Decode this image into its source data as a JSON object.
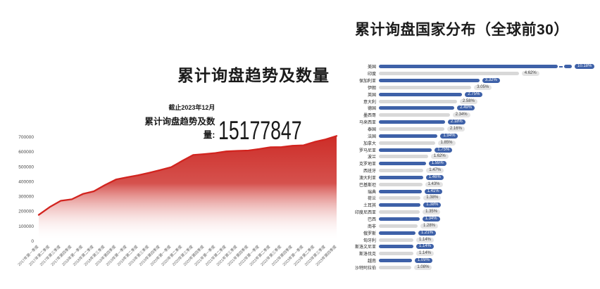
{
  "chart_data": [
    {
      "type": "area",
      "title": "累计询盘趋势及数量",
      "as_of": "截止2023年12月",
      "stat_label": "累计询盘趋势及数量:",
      "stat_value": "15177847",
      "x": [
        "2017年第一季度",
        "2017年第二季度",
        "2017年第三季度",
        "2017年第四季度",
        "2018年第一季度",
        "2018年第二季度",
        "2018年第三季度",
        "2018年第四季度",
        "2019年第一季度",
        "2019年第二季度",
        "2019年第三季度",
        "2019年第四季度",
        "2020年第一季度",
        "2020年第二季度",
        "2020年第三季度",
        "2020年第四季度",
        "2021年第一季度",
        "2021年第二季度",
        "2021年第三季度",
        "2021年第四季度",
        "2022年第一季度",
        "2022年第二季度",
        "2022年第三季度",
        "2022年第四季度",
        "2023年第一季度",
        "2023年第二季度",
        "2023年第三季度",
        "2023年第四季度"
      ],
      "values": [
        177000,
        230000,
        272000,
        282000,
        318000,
        336000,
        378000,
        415000,
        430000,
        443000,
        460000,
        478000,
        498000,
        540000,
        580000,
        586000,
        593000,
        604000,
        608000,
        610000,
        620000,
        632000,
        633000,
        642000,
        645000,
        668000,
        685000,
        708000
      ],
      "yticks": [
        0,
        100000,
        200000,
        300000,
        400000,
        500000,
        600000,
        700000
      ],
      "ylim": [
        0,
        750000
      ],
      "grid": false,
      "line_color": "#d2241f",
      "fill_top_color": "#cb2621",
      "fill_bottom_color": "#ffffff"
    },
    {
      "type": "bar",
      "orientation": "horizontal",
      "title": "累计询盘国家分布（全球前30）",
      "unit": "%",
      "categories": [
        "美国",
        "印度",
        "保加利亚",
        "伊朗",
        "英国",
        "意大利",
        "德国",
        "墨西哥",
        "马来西亚",
        "泰国",
        "法国",
        "加拿大",
        "罗马尼亚",
        "波兰",
        "克罗地亚",
        "西班牙",
        "澳大利亚",
        "巴基斯坦",
        "瑞典",
        "荷兰",
        "土耳其",
        "印度尼西亚",
        "巴西",
        "南非",
        "俄罗斯",
        "匈牙利",
        "斯洛文尼亚",
        "斯洛伐克",
        "越南",
        "沙特阿拉伯"
      ],
      "values": [
        10.18,
        4.62,
        3.32,
        3.05,
        2.75,
        2.58,
        2.49,
        2.34,
        2.18,
        2.16,
        1.94,
        1.85,
        1.75,
        1.62,
        1.55,
        1.47,
        1.46,
        1.43,
        1.41,
        1.38,
        1.38,
        1.35,
        1.34,
        1.28,
        1.21,
        1.14,
        1.14,
        1.14,
        1.09,
        1.08
      ],
      "labels": [
        "10.18%",
        "4.62%",
        "3.32%",
        "3.05%",
        "2.75%",
        "2.58%",
        "2.49%",
        "2.34%",
        "2.18%",
        "2.16%",
        "1.94%",
        "1.85%",
        "1.75%",
        "1.62%",
        "1.55%",
        "1.47%",
        "1.46%",
        "1.43%",
        "1.41%",
        "1.38%",
        "1.38%",
        "1.35%",
        "1.34%",
        "1.28%",
        "1.21%",
        "1.14%",
        "1.14%",
        "1.14%",
        "1.09%",
        "1.08%"
      ],
      "axis_break_first_bar": true,
      "legend": false,
      "xlim": [
        0,
        11
      ],
      "bar_color_odd": "#3e61a8",
      "bar_color_even": "#d8d8d8",
      "badge_bg_odd": "#3e61a8",
      "badge_text_odd": "#ffffff",
      "badge_bg_even": "#e4e4e4",
      "badge_text_even": "#444444"
    }
  ]
}
